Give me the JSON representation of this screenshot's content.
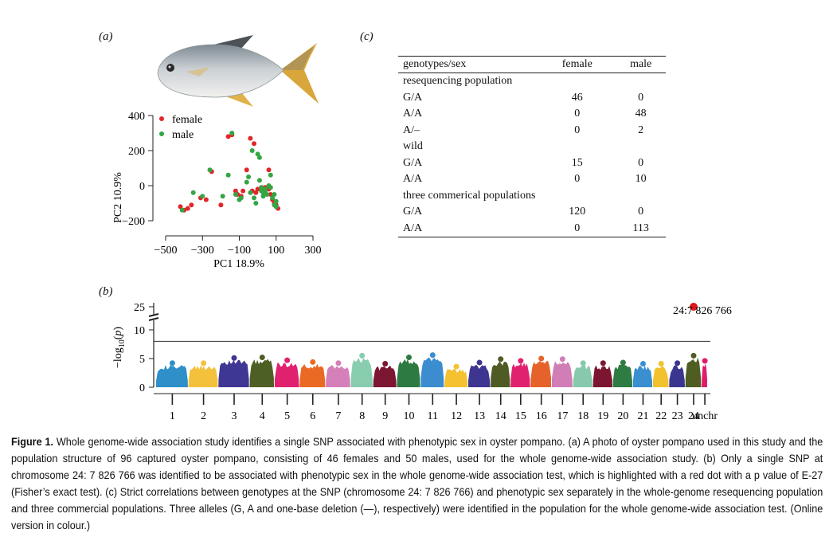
{
  "panel_labels": {
    "a": "(a)",
    "b": "(b)",
    "c": "(c)"
  },
  "colors": {
    "female": "#e0262b",
    "male": "#33a644",
    "threshold": "#333333",
    "hit": "#e0161b"
  },
  "chart_data": [
    {
      "panel": "a",
      "type": "scatter",
      "title": "",
      "xlabel": "PC1 18.9%",
      "ylabel": "PC2 10.9%",
      "xticks": [
        "−500",
        "−300",
        "−100",
        "100",
        "300"
      ],
      "yticks": [
        "400",
        "200",
        "0",
        "−200"
      ],
      "xlim": [
        -500,
        300
      ],
      "ylim": [
        -200,
        400
      ],
      "legend": {
        "position": "top-left",
        "entries": [
          "female",
          "male"
        ]
      },
      "series": [
        {
          "name": "female",
          "color": "#e0262b",
          "points": [
            [
              -420,
              -120
            ],
            [
              -400,
              -140
            ],
            [
              -380,
              -130
            ],
            [
              -360,
              -110
            ],
            [
              -310,
              -70
            ],
            [
              -280,
              -80
            ],
            [
              -250,
              80
            ],
            [
              -200,
              -110
            ],
            [
              -160,
              280
            ],
            [
              -140,
              290
            ],
            [
              -120,
              -30
            ],
            [
              -110,
              -50
            ],
            [
              -90,
              -60
            ],
            [
              -60,
              90
            ],
            [
              -40,
              270
            ],
            [
              -20,
              240
            ],
            [
              0,
              -20
            ],
            [
              20,
              -10
            ],
            [
              40,
              -10
            ],
            [
              60,
              -20
            ],
            [
              70,
              -50
            ],
            [
              80,
              -80
            ],
            [
              90,
              -100
            ],
            [
              100,
              -110
            ],
            [
              110,
              -130
            ],
            [
              -30,
              -30
            ],
            [
              -10,
              -40
            ],
            [
              50,
              -20
            ],
            [
              60,
              90
            ],
            [
              -80,
              -30
            ]
          ]
        },
        {
          "name": "male",
          "color": "#33a644",
          "points": [
            [
              -410,
              -140
            ],
            [
              -350,
              -40
            ],
            [
              -300,
              -60
            ],
            [
              -260,
              90
            ],
            [
              -190,
              -60
            ],
            [
              -160,
              60
            ],
            [
              -140,
              300
            ],
            [
              -120,
              -50
            ],
            [
              -100,
              -80
            ],
            [
              -90,
              -70
            ],
            [
              -50,
              50
            ],
            [
              -40,
              -40
            ],
            [
              -20,
              -70
            ],
            [
              -10,
              -100
            ],
            [
              0,
              180
            ],
            [
              10,
              160
            ],
            [
              10,
              30
            ],
            [
              20,
              -10
            ],
            [
              30,
              -40
            ],
            [
              40,
              -20
            ],
            [
              50,
              -50
            ],
            [
              60,
              0
            ],
            [
              70,
              60
            ],
            [
              80,
              -70
            ],
            [
              90,
              -50
            ],
            [
              100,
              -90
            ],
            [
              100,
              -120
            ],
            [
              20,
              -30
            ],
            [
              30,
              -60
            ],
            [
              -30,
              200
            ],
            [
              -60,
              20
            ],
            [
              40,
              -30
            ],
            [
              70,
              -10
            ],
            [
              90,
              -110
            ]
          ]
        }
      ]
    },
    {
      "panel": "b",
      "type": "scatter",
      "title": "",
      "xlabel": "",
      "ylabel": "−log10(p)",
      "yticks": [
        "0",
        "5",
        "10",
        "25"
      ],
      "ylim": [
        0,
        27
      ],
      "chromosomes": [
        "1",
        "2",
        "3",
        "4",
        "5",
        "6",
        "7",
        "8",
        "9",
        "10",
        "11",
        "12",
        "13",
        "14",
        "15",
        "16",
        "17",
        "18",
        "19",
        "20",
        "21",
        "22",
        "23",
        "24",
        "unchr"
      ],
      "chromosome_colors": [
        "#2e8fc9",
        "#f3c13c",
        "#3f3794",
        "#4e5f25",
        "#e0216f",
        "#ea6a24",
        "#d580b9",
        "#88cdae",
        "#7d1631",
        "#2d7a42",
        "#3b8dd0",
        "#f5c131",
        "#3d3590",
        "#4e5b25",
        "#e0216f",
        "#e5632a",
        "#d07eb5",
        "#86c9ab",
        "#7c1530",
        "#2e7b43",
        "#3a8fd1",
        "#f2c12e",
        "#3a3690",
        "#4f5c22",
        "#e01c6a"
      ],
      "peak_heights": [
        3.9,
        3.9,
        4.8,
        4.9,
        4.4,
        4.1,
        3.9,
        5.2,
        3.8,
        4.9,
        5.3,
        3.3,
        4.0,
        4.6,
        4.3,
        4.7,
        4.6,
        3.9,
        3.9,
        4.0,
        3.8,
        3.8,
        3.9,
        5.2,
        4.3
      ],
      "threshold": 8.0,
      "hit": {
        "chromosome": "24",
        "value": 27,
        "label": "24:7 826 766"
      }
    }
  ],
  "fish_photo": {
    "alt": "oyster pompano"
  },
  "table_c": {
    "header": [
      "genotypes/sex",
      "female",
      "male"
    ],
    "groups": [
      {
        "name": "resequencing population",
        "rows": [
          [
            "G/A",
            "46",
            "0"
          ],
          [
            "A/A",
            "0",
            "48"
          ],
          [
            "A/–",
            "0",
            "2"
          ]
        ]
      },
      {
        "name": "wild",
        "rows": [
          [
            "G/A",
            "15",
            "0"
          ],
          [
            "A/A",
            "0",
            "10"
          ]
        ]
      },
      {
        "name": "three commerical populations",
        "rows": [
          [
            "G/A",
            "120",
            "0"
          ],
          [
            "A/A",
            "0",
            "113"
          ]
        ]
      }
    ]
  },
  "caption": {
    "figure_label": "Figure 1.",
    "text": " Whole genome-wide association study identifies a single SNP associated with phenotypic sex in oyster pompano. (a) A photo of oyster pompano used in this study and the population structure of 96 captured oyster pompano, consisting of 46 females and 50 males, used for the whole genome-wide association study. (b) Only a single SNP at chromosome 24: 7 826 766 was identified to be associated with phenotypic sex in the whole genome-wide association test, which is highlighted with a red dot with a p value of E-27 (Fisher’s exact test). (c) Strict correlations between genotypes at the SNP (chromosome 24: 7 826 766) and phenotypic sex separately in the whole-genome resequencing population and three commercial populations. Three alleles (G, A and one-base deletion (—), respectively) were identified in the population for the whole genome-wide association test. (Online version in colour.)"
  }
}
